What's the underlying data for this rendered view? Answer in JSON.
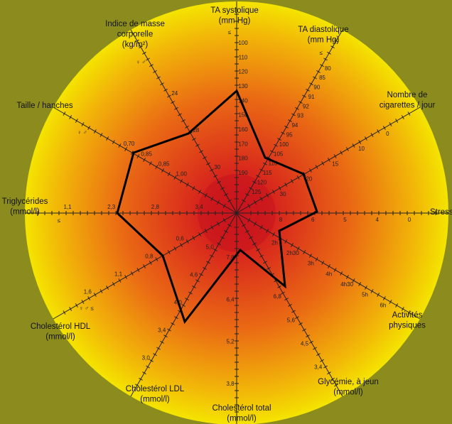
{
  "axes": [
    {
      "label": [
        "TA systolique",
        "(mm Hg)"
      ],
      "symbol": "≤",
      "ticks": [
        "100",
        "110",
        "120",
        "130",
        "140",
        "150",
        "160",
        "170",
        "180",
        "190"
      ]
    },
    {
      "label": [
        "TA diastolique",
        "(mm Hg)"
      ],
      "symbol": "≤",
      "ticks": [
        "80",
        "85",
        "90",
        "91",
        "92",
        "93",
        "94",
        "95",
        "100",
        "105",
        "110",
        "115",
        "120",
        "125"
      ]
    },
    {
      "label": [
        "Nombre de",
        "cigarettes / jour"
      ],
      "ticks": [
        "0",
        "10",
        "15",
        "20",
        "30"
      ]
    },
    {
      "label": [
        "Stress"
      ],
      "ticks": [
        "0",
        "4",
        "5",
        "6",
        "8"
      ]
    },
    {
      "label": [
        "Activités",
        "physiques"
      ],
      "ticks": [
        "6h",
        "5h",
        "4h30",
        "4h",
        "3h",
        "2h30",
        "2h"
      ]
    },
    {
      "label": [
        "Glycémie, à jeun",
        "(mmol/l)"
      ],
      "ticks": [
        "3,4",
        "4,5",
        "5,6",
        "6,8"
      ]
    },
    {
      "label": [
        "Cholestérol total",
        "(mmol/l)"
      ],
      "ticks": [
        "3,8",
        "5,2",
        "6,4",
        "7,8"
      ]
    },
    {
      "label": [
        "Cholestérol LDL",
        "(mmol/l)"
      ],
      "ticks": [
        "3,0",
        "3,4",
        "4,0",
        "4,6",
        "5,0"
      ]
    },
    {
      "label": [
        "Cholestérol HDL",
        "(mmol/l)"
      ],
      "symbol": "♀ ♂ ≤",
      "ticks": [
        "1,6",
        "1,1",
        "0,8",
        "0,6"
      ]
    },
    {
      "label": [
        "Triglycérides",
        "(mmol/l)"
      ],
      "symbol": "≤",
      "ticks": [
        "1,1",
        "2,3",
        "2,8",
        "3,4"
      ]
    },
    {
      "label": [
        "Taille / hanches"
      ],
      "symbol": "♀ ♂",
      "ticks": [
        "0,70",
        "0,85",
        "0,85",
        "1,00"
      ]
    },
    {
      "label": [
        "Indice de masse",
        "corporelle",
        "(kg/m²)"
      ],
      "symbol": "♀ ♂",
      "ticks": [
        "24",
        "28",
        "30"
      ]
    }
  ]
}
